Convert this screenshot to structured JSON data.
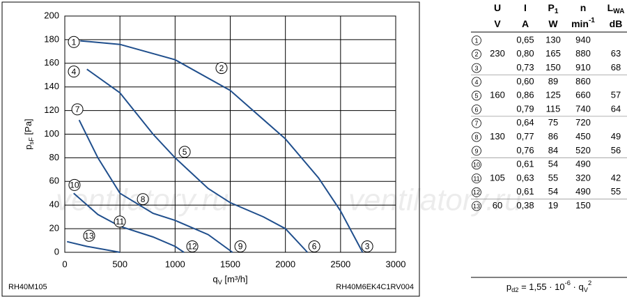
{
  "chart_data": {
    "type": "line",
    "xlabel": [
      {
        "text": "q"
      },
      {
        "sub": "V"
      },
      {
        "text": " [m³/h]"
      }
    ],
    "ylabel": [
      {
        "text": "p"
      },
      {
        "sub": "sF"
      },
      {
        "text": " [Pa]"
      }
    ],
    "xlim": [
      0,
      3000
    ],
    "xticks": [
      0,
      500,
      1000,
      1500,
      2000,
      2500,
      3000
    ],
    "ylim": [
      0,
      200
    ],
    "yticks": [
      0,
      20,
      40,
      60,
      80,
      100,
      120,
      140,
      160,
      180,
      200
    ],
    "grid": true,
    "series": [
      {
        "color": "#1f4e8c",
        "x": [
          140,
          500,
          1000,
          1500,
          2000,
          2300,
          2500,
          2700
        ],
        "values": [
          179,
          176,
          163,
          137,
          96,
          63,
          35,
          0
        ]
      },
      {
        "color": "#1f4e8c",
        "x": [
          200,
          500,
          800,
          1000,
          1300,
          1500,
          1800,
          2000,
          2200
        ],
        "values": [
          155,
          135,
          100,
          80,
          54,
          42,
          30,
          20,
          0
        ]
      },
      {
        "color": "#1f4e8c",
        "x": [
          130,
          300,
          500,
          800,
          1000,
          1300,
          1520
        ],
        "values": [
          112,
          80,
          50,
          33,
          27,
          15,
          0
        ]
      },
      {
        "color": "#1f4e8c",
        "x": [
          80,
          300,
          500,
          800,
          1000,
          1080
        ],
        "values": [
          50,
          32,
          22,
          13,
          5,
          0
        ]
      },
      {
        "color": "#1f4e8c",
        "x": [
          20,
          200,
          500
        ],
        "values": [
          9,
          5,
          0
        ]
      }
    ],
    "annotations": [
      {
        "text": "1",
        "x": 82,
        "y": 178
      },
      {
        "text": "2",
        "x": 1421,
        "y": 156
      },
      {
        "text": "3",
        "x": 2742,
        "y": 5
      },
      {
        "text": "4",
        "x": 82,
        "y": 153
      },
      {
        "text": "5",
        "x": 1087,
        "y": 85
      },
      {
        "text": "6",
        "x": 2262,
        "y": 5
      },
      {
        "text": "7",
        "x": 114,
        "y": 121
      },
      {
        "text": "8",
        "x": 708,
        "y": 45
      },
      {
        "text": "9",
        "x": 1592,
        "y": 5
      },
      {
        "text": "10",
        "x": 88,
        "y": 57
      },
      {
        "text": "11",
        "x": 499,
        "y": 26
      },
      {
        "text": "12",
        "x": 1156,
        "y": 5
      },
      {
        "text": "13",
        "x": 221,
        "y": 14
      }
    ],
    "footer_left": "RH40M105",
    "footer_right": "RH40M6EK4C1RV004",
    "watermark": [
      "ventilatory.ru",
      "ventilatory.ru"
    ]
  },
  "table": {
    "columns": [
      {
        "symbol": [
          {
            "text": "U"
          }
        ],
        "unit": [
          {
            "text": "V"
          }
        ]
      },
      {
        "symbol": [
          {
            "text": "I"
          }
        ],
        "unit": [
          {
            "text": "A"
          }
        ]
      },
      {
        "symbol": [
          {
            "text": "P"
          },
          {
            "sub": "1"
          }
        ],
        "unit": [
          {
            "text": "W"
          }
        ]
      },
      {
        "symbol": [
          {
            "text": "n"
          }
        ],
        "unit": [
          {
            "text": "min"
          },
          {
            "sup": "-1"
          }
        ]
      },
      {
        "symbol": [
          {
            "text": "L"
          },
          {
            "sub": "WA"
          }
        ],
        "unit": [
          {
            "text": "dB"
          }
        ]
      }
    ],
    "rows": [
      [
        "1",
        null,
        "0,65",
        "130",
        "940",
        null
      ],
      [
        "2",
        "230",
        "0,80",
        "165",
        "880",
        "63"
      ],
      [
        "3",
        null,
        "0,73",
        "150",
        "910",
        "68"
      ],
      [
        "4",
        null,
        "0,60",
        "89",
        "860",
        null
      ],
      [
        "5",
        "160",
        "0,86",
        "125",
        "660",
        "57"
      ],
      [
        "6",
        null,
        "0,79",
        "115",
        "740",
        "64"
      ],
      [
        "7",
        null,
        "0,64",
        "75",
        "720",
        null
      ],
      [
        "8",
        "130",
        "0,77",
        "86",
        "450",
        "49"
      ],
      [
        "9",
        null,
        "0,76",
        "84",
        "520",
        "56"
      ],
      [
        "10",
        null,
        "0,61",
        "54",
        "490",
        null
      ],
      [
        "11",
        "105",
        "0,63",
        "55",
        "320",
        "42"
      ],
      [
        "12",
        null,
        "0,61",
        "54",
        "490",
        "55"
      ],
      [
        "13",
        "60",
        "0,38",
        "19",
        "150",
        null
      ]
    ],
    "formula": [
      {
        "text": "p"
      },
      {
        "sub": "d2"
      },
      {
        "text": " = 1,55 · 10"
      },
      {
        "sup": "-6"
      },
      {
        "text": " · q"
      },
      {
        "sub": "V"
      },
      {
        "sup": "2"
      }
    ]
  }
}
